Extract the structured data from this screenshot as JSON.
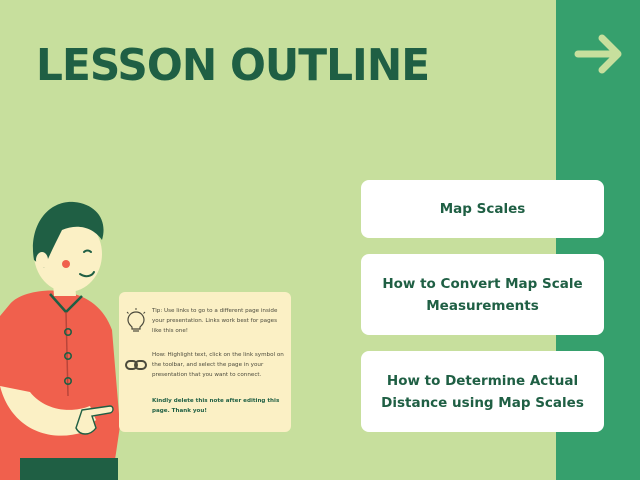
{
  "slide": {
    "title": "LESSON OUTLINE"
  },
  "links": [
    {
      "label": "Map Scales"
    },
    {
      "label": "How to Convert Map Scale Measurements"
    },
    {
      "label": "How to Determine Actual Distance using Map Scales"
    }
  ],
  "note": {
    "tip": "Tip: Use links to go to a different page inside your presentation. Links work best for pages like this one!",
    "how": "How: Highlight text, click on the link symbol on the toolbar, and select the page in your presentation that you want to connect.",
    "reminder": "Kindly delete this note after editing this page.  Thank you!"
  },
  "icons": {
    "next": "arrow-right-icon",
    "tip": "lightbulb-icon",
    "how": "link-chain-icon"
  },
  "colors": {
    "background": "#c7df9d",
    "accent_panel": "#36a06d",
    "title": "#1f5f44",
    "card": "#ffffff",
    "note": "#fbf0c5",
    "shirt": "#f0604d"
  }
}
